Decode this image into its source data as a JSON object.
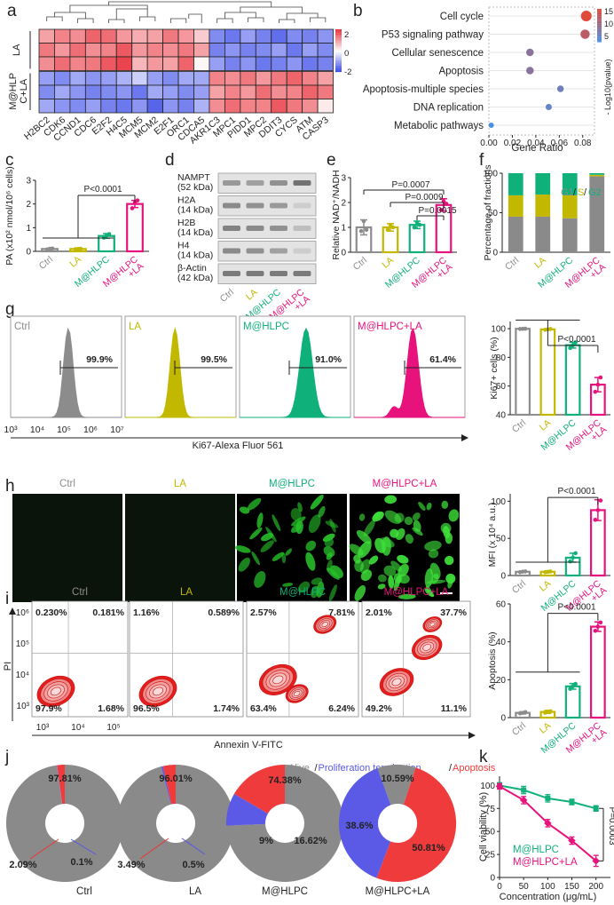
{
  "panel_letters": [
    "a",
    "b",
    "c",
    "d",
    "e",
    "f",
    "g",
    "h",
    "i",
    "j",
    "k"
  ],
  "colors": {
    "ctrl": "#8c8c8c",
    "la": "#c2b800",
    "mhlpc": "#10b07a",
    "mhlpc_la": "#e8127c",
    "heat_high": "#e8303a",
    "heat_low": "#2d3fe6",
    "alive": "#8a8a8a",
    "prolif": "#5a5ae6",
    "apop": "#ef3b3b"
  },
  "chart_data": [
    {
      "id": "a",
      "type": "heatmap",
      "row_labels": [
        "LA",
        "M@HLP\nC+LA"
      ],
      "rows_per_group": 3,
      "genes": [
        "H2BC2",
        "CDK6",
        "CCND1",
        "CDC6",
        "E2F2",
        "H4C5",
        "MCM5",
        "MCM2",
        "E2F1",
        "ORC1",
        "CDCA5",
        "AKR1C3",
        "MPC1",
        "PIDD1",
        "MPC2",
        "DDIT3",
        "CYCS",
        "ATM",
        "CASP3"
      ],
      "values": [
        [
          0.9,
          1.2,
          1.1,
          1.5,
          1.4,
          1.0,
          0.8,
          0.9,
          1.3,
          1.0,
          0.5,
          -1.2,
          -1.4,
          -1.0,
          -1.3,
          -1.5,
          -1.2,
          -1.3,
          -1.1
        ],
        [
          1.3,
          1.0,
          1.4,
          1.1,
          1.2,
          1.6,
          1.0,
          1.2,
          1.1,
          1.3,
          0.9,
          -1.3,
          -1.1,
          -1.3,
          -1.2,
          -1.0,
          -1.4,
          -1.0,
          -1.2
        ],
        [
          1.1,
          1.4,
          1.2,
          1.3,
          1.6,
          1.8,
          0.7,
          1.0,
          0.9,
          1.5,
          0.1,
          -1.0,
          -1.3,
          -1.1,
          -1.4,
          -1.3,
          -1.1,
          -1.4,
          -1.3
        ],
        [
          -1.0,
          -1.2,
          -0.9,
          -1.1,
          -1.0,
          -0.8,
          -0.5,
          -1.0,
          -1.2,
          -0.9,
          -0.9,
          1.2,
          1.1,
          1.3,
          1.0,
          1.3,
          1.5,
          1.2,
          0.9
        ],
        [
          -1.2,
          -0.9,
          -1.1,
          -1.3,
          -1.2,
          -1.1,
          -1.4,
          -0.9,
          -1.0,
          -1.2,
          -1.0,
          0.9,
          1.2,
          1.0,
          1.4,
          1.1,
          1.2,
          1.5,
          1.3
        ],
        [
          -0.9,
          -1.1,
          -1.2,
          -1.0,
          -1.3,
          -1.4,
          -1.1,
          -1.6,
          -1.1,
          -1.3,
          -0.8,
          1.1,
          1.4,
          1.2,
          1.2,
          1.6,
          1.3,
          1.1,
          0.2
        ]
      ],
      "colorbar": {
        "ticks": [
          "2",
          "0",
          "-2"
        ],
        "range": [
          -2,
          2
        ]
      }
    },
    {
      "id": "b",
      "type": "scatter",
      "terms": [
        "Cell cycle",
        "P53 signaling pathway",
        "Cellular senescence",
        "Apoptosis",
        "Apoptosis-multiple species",
        "DNA replication",
        "Metabolic pathways"
      ],
      "gene_ratio": [
        0.083,
        0.082,
        0.035,
        0.035,
        0.061,
        0.051,
        0.002
      ],
      "neg_log10_p": [
        15,
        12,
        8,
        8,
        6,
        5,
        3
      ],
      "xlabel": "Gene Ratio",
      "x_ticks": [
        "0.00",
        "0.02",
        "0.04",
        "0.06",
        "0.08"
      ],
      "xlim": [
        0,
        0.09
      ],
      "legend_title": "- Log10(pvalue)",
      "legend_ticks": [
        "15",
        "10",
        "5"
      ]
    },
    {
      "id": "c",
      "type": "bar",
      "categories": [
        "Ctrl",
        "LA",
        "M@HLPC",
        "M@HLPC\n+LA"
      ],
      "values": [
        0.1,
        0.1,
        0.65,
        2.0
      ],
      "errors": [
        0.03,
        0.03,
        0.1,
        0.15
      ],
      "points": [
        [
          0.08,
          0.11,
          0.12
        ],
        [
          0.09,
          0.1,
          0.11
        ],
        [
          0.58,
          0.66,
          0.73
        ],
        [
          1.82,
          2.05,
          2.15
        ]
      ],
      "ylabel": "PA (x10² nmol/10⁶ cells)",
      "y_ticks": [
        "0",
        "1",
        "2",
        "3"
      ],
      "ylim": [
        0,
        3
      ],
      "significance": "P<0.0001"
    },
    {
      "id": "e",
      "type": "bar",
      "categories": [
        "Ctrl",
        "LA",
        "M@HLPC",
        "M@HLPC\n+LA"
      ],
      "values": [
        1.0,
        1.0,
        1.1,
        1.9
      ],
      "errors": [
        0.3,
        0.15,
        0.15,
        0.25
      ],
      "points": [
        [
          0.85,
          1.25,
          0.9
        ],
        [
          0.9,
          1.1,
          1.0
        ],
        [
          1.0,
          1.2,
          1.1
        ],
        [
          1.7,
          2.05,
          1.95
        ]
      ],
      "ylabel": "Relative NAD⁺/NADH",
      "y_ticks": [
        "0",
        "1",
        "2",
        "3"
      ],
      "ylim": [
        0,
        3
      ],
      "significance": [
        "P=0.0007",
        "P=0.0009",
        "P=0.0015"
      ]
    },
    {
      "id": "f",
      "type": "bar",
      "stacked": true,
      "categories": [
        "Ctrl",
        "LA",
        "M@HLPC",
        "M@HLPC\n+LA"
      ],
      "series": [
        {
          "name": "G1",
          "values": [
            45,
            45,
            43,
            96
          ]
        },
        {
          "name": "S",
          "values": [
            27,
            28,
            29,
            2
          ]
        },
        {
          "name": "G2",
          "values": [
            28,
            27,
            28,
            2
          ]
        }
      ],
      "ylabel": "Percentage of fractions",
      "y_ticks": [
        "0",
        "50",
        "100"
      ],
      "ylim": [
        0,
        100
      ],
      "legend_parts": [
        "G1",
        "/",
        "S",
        "/",
        "G2"
      ]
    },
    {
      "id": "g_bar",
      "type": "bar",
      "categories": [
        "Ctrl",
        "LA",
        "M@HLPC",
        "M@HLPC\n+LA"
      ],
      "values": [
        99.9,
        99.5,
        88.5,
        61.0
      ],
      "errors": [
        0.3,
        0.5,
        2.0,
        5.0
      ],
      "points": [
        [
          99.8,
          99.9,
          100
        ],
        [
          99.2,
          99.5,
          99.8
        ],
        [
          86.5,
          88.5,
          90.5
        ],
        [
          56,
          61,
          66
        ]
      ],
      "ylabel": "Ki67+ cells (%)",
      "y_ticks": [
        "40",
        "60",
        "80",
        "100"
      ],
      "ylim": [
        40,
        105
      ],
      "significance": "P<0.0001"
    },
    {
      "id": "h_bar",
      "type": "bar",
      "categories": [
        "Ctrl",
        "LA",
        "M@HLPC",
        "M@HLPC\n+LA"
      ],
      "values": [
        5,
        5,
        24,
        88
      ],
      "errors": [
        1,
        1,
        6,
        14
      ],
      "points": [
        [
          4.5,
          5.2,
          5.5
        ],
        [
          4.5,
          5.0,
          5.4
        ],
        [
          19,
          24,
          30
        ],
        [
          75,
          88,
          101
        ]
      ],
      "ylabel": "MFI (x 10⁴ a.u.)",
      "y_ticks": [
        "0",
        "50",
        "100"
      ],
      "ylim": [
        0,
        110
      ],
      "significance": "P<0.0001"
    },
    {
      "id": "i_bar",
      "type": "bar",
      "categories": [
        "Ctrl",
        "LA",
        "M@HLPC",
        "M@HLPC\n+LA"
      ],
      "values": [
        2.5,
        3.0,
        16.5,
        48.0
      ],
      "errors": [
        0.6,
        0.8,
        1.5,
        2.5
      ],
      "points": [
        [
          2.2,
          2.5,
          2.9
        ],
        [
          2.6,
          3.0,
          3.4
        ],
        [
          15.2,
          16.5,
          17.8
        ],
        [
          45.8,
          48,
          50.2
        ]
      ],
      "ylabel": "Apoptosis (%)",
      "y_ticks": [
        "0",
        "20",
        "40",
        "60"
      ],
      "ylim": [
        0,
        60
      ],
      "significance": "P<0.0001"
    },
    {
      "id": "j",
      "type": "pie",
      "legend_parts": [
        "Alive",
        "/",
        "Proliferation termination",
        "/",
        "Apoptosis"
      ],
      "series_names": [
        "Alive",
        "Proliferation termination",
        "Apoptosis"
      ],
      "pies": [
        {
          "name": "Ctrl",
          "values": [
            97.81,
            0.1,
            2.09
          ],
          "labels": [
            "97.81%",
            "0.1%",
            "2.09%"
          ]
        },
        {
          "name": "LA",
          "values": [
            96.01,
            0.5,
            3.49
          ],
          "labels": [
            "96.01%",
            "0.5%",
            "3.49%"
          ]
        },
        {
          "name": "M@HLPC",
          "values": [
            74.38,
            9,
            16.62
          ],
          "labels": [
            "74.38%",
            "9%",
            "16.62%"
          ]
        },
        {
          "name": "M@HLPC+LA",
          "values": [
            10.59,
            38.6,
            50.81
          ],
          "labels": [
            "10.59%",
            "38.6%",
            "50.81%"
          ]
        }
      ]
    },
    {
      "id": "k",
      "type": "line",
      "x": [
        0,
        50,
        100,
        150,
        200
      ],
      "series": [
        {
          "name": "M@HLPC",
          "values": [
            100,
            95,
            86,
            82,
            75
          ],
          "errors": [
            3,
            4,
            4,
            3,
            3
          ]
        },
        {
          "name": "M@HLPC+LA",
          "values": [
            99,
            84,
            59,
            40,
            18
          ],
          "errors": [
            3,
            4,
            4,
            4,
            6
          ]
        }
      ],
      "xlabel": "Concentration  (μg/mL)",
      "ylabel": "Cell viability (%)",
      "x_ticks": [
        "0",
        "50",
        "100",
        "150",
        "200"
      ],
      "y_ticks": [
        "0",
        "25",
        "50",
        "75",
        "100"
      ],
      "xlim": [
        0,
        230
      ],
      "ylim": [
        0,
        110
      ],
      "significance": "P=0.0003"
    }
  ],
  "d_blot": {
    "proteins": [
      "NAMPT\n(52 kDa)",
      "H2A\n(14 kDa)",
      "H2B\n(14 kDa)",
      "H4\n(14 kDa)",
      "β-Actin\n(42 kDa)"
    ],
    "band_intensity": [
      [
        0.55,
        0.5,
        0.6,
        0.8
      ],
      [
        0.65,
        0.6,
        0.55,
        0.2
      ],
      [
        0.7,
        0.65,
        0.6,
        0.3
      ],
      [
        0.65,
        0.6,
        0.5,
        0.2
      ],
      [
        0.75,
        0.75,
        0.75,
        0.75
      ]
    ],
    "groups": [
      "Ctrl",
      "LA",
      "M@HLPC",
      "M@HLPC\n+LA"
    ]
  },
  "flow_g": {
    "axis_label": "Ki67-Alexa Fluor 561",
    "x_ticks": [
      "10³",
      "10⁴",
      "10⁵",
      "10⁶",
      "10⁷"
    ],
    "panels": [
      {
        "label": "Ctrl",
        "gate": "99.9%"
      },
      {
        "label": "LA",
        "gate": "99.5%"
      },
      {
        "label": "M@HLPC",
        "gate": "91.0%"
      },
      {
        "label": "M@HLPC+LA",
        "gate": "61.4%"
      }
    ]
  },
  "micro_h": {
    "labels": [
      "Ctrl",
      "LA",
      "M@HLPC",
      "M@HLPC+LA"
    ]
  },
  "flow_i": {
    "xlabel": "Annexin V-FITC",
    "ylabel": "PI",
    "x_ticks": [
      "10³",
      "10⁴",
      "10⁵"
    ],
    "y_ticks": [
      "10⁶",
      "10⁵",
      "10⁴",
      "10³"
    ],
    "panels": [
      {
        "label": "Ctrl",
        "q": [
          "0.230%",
          "0.181%",
          "97.9%",
          "1.68%"
        ]
      },
      {
        "label": "LA",
        "q": [
          "1.16%",
          "0.589%",
          "96.5%",
          "1.74%"
        ]
      },
      {
        "label": "M@HLPC",
        "q": [
          "2.57%",
          "7.81%",
          "63.4%",
          "6.24%"
        ]
      },
      {
        "label": "M@HLPC+LA",
        "q": [
          "2.01%",
          "37.7%",
          "49.2%",
          "11.1%"
        ]
      }
    ]
  }
}
